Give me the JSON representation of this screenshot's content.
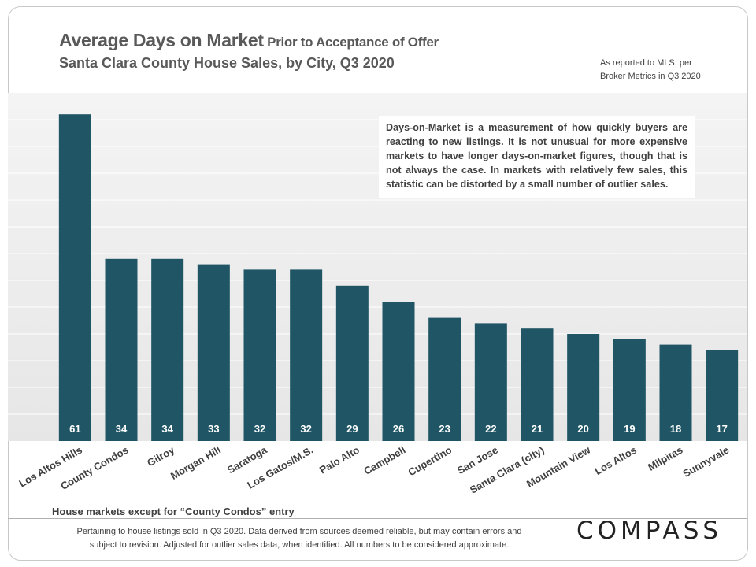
{
  "header": {
    "title_main": "Average Days on Market",
    "title_rest": " Prior to Acceptance of Offer",
    "title_line2": "Santa Clara County House Sales, by City, Q3 2020",
    "source_line1": "As reported to MLS, per",
    "source_line2": "Broker Metrics in Q3 2020"
  },
  "annotation": "Days-on-Market is a measurement of how quickly buyers are reacting to new listings. It is not unusual for more expensive markets to have longer days-on-market figures, though that is not always the case. In markets with relatively few sales, this statistic can be distorted by a small number of outlier sales.",
  "note_under_axis": "House markets except for “County Condos” entry",
  "footer_line1": "Pertaining to house listings sold in Q3 2020. Data derived from sources deemed reliable, but may contain errors and",
  "footer_line2": "subject to revision. Adjusted for outlier sales data, when identified. All numbers to be considered approximate.",
  "logo_text": "COMPASS",
  "colors": {
    "bar": "#1f5564",
    "grid": "#ffffff",
    "label": "#ffffff"
  },
  "chart_data": {
    "type": "bar",
    "title": "Average Days on Market Prior to Acceptance of Offer",
    "subtitle": "Santa Clara County House Sales, by City, Q3 2020",
    "categories": [
      "Los Altos Hills",
      "County Condos",
      "Gilroy",
      "Morgan Hill",
      "Saratoga",
      "Los Gatos/M.S.",
      "Palo Alto",
      "Campbell",
      "Cupertino",
      "San Jose",
      "Santa Clara (city)",
      "Mountain View",
      "Los Altos",
      "Milpitas",
      "Sunnyvale"
    ],
    "values": [
      61,
      34,
      34,
      33,
      32,
      32,
      29,
      26,
      23,
      22,
      21,
      20,
      19,
      18,
      17
    ],
    "data_labels": [
      "61",
      "34",
      "34",
      "33",
      "32",
      "32",
      "29",
      "26",
      "23",
      "22",
      "21",
      "20",
      "19",
      "18",
      "17"
    ],
    "ylim": [
      0,
      65
    ],
    "gridlines": [
      5,
      10,
      15,
      20,
      25,
      30,
      35,
      40,
      45,
      50,
      55,
      60
    ],
    "grid": true,
    "legend": "none"
  }
}
